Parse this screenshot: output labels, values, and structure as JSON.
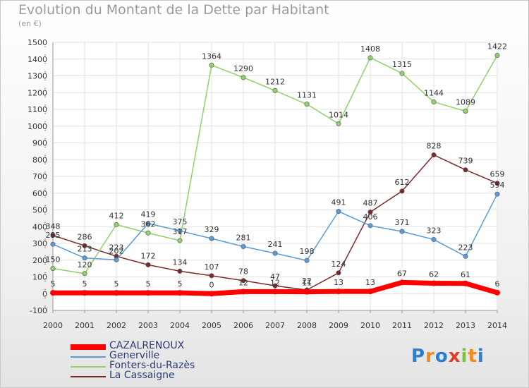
{
  "header": {
    "title": "Evolution du Montant de la Dette par Habitant",
    "unit": "(en €)"
  },
  "logo": {
    "text": "Proxiti"
  },
  "chart_data": {
    "type": "line",
    "title": "Evolution du Montant de la Dette par Habitant",
    "subtitle": "(en €)",
    "x": [
      2000,
      2001,
      2002,
      2003,
      2004,
      2005,
      2006,
      2007,
      2008,
      2009,
      2010,
      2011,
      2012,
      2013,
      2014
    ],
    "ylim": [
      -100,
      1500
    ],
    "yticks": [
      -100,
      0,
      100,
      200,
      300,
      400,
      500,
      600,
      700,
      800,
      900,
      1000,
      1100,
      1200,
      1300,
      1400,
      1500
    ],
    "grid": true,
    "legend_position": "bottom-left",
    "series": [
      {
        "name": "CAZALRENOUX",
        "color": "#ff0000",
        "points": [
          [
            2000,
            5
          ],
          [
            2001,
            5
          ],
          [
            2002,
            5
          ],
          [
            2003,
            5
          ],
          [
            2004,
            5
          ],
          [
            2005,
            0
          ],
          [
            2006,
            12
          ],
          [
            2007,
            12
          ],
          [
            2008,
            11
          ],
          [
            2009,
            13
          ],
          [
            2010,
            13
          ],
          [
            2011,
            67
          ],
          [
            2012,
            62
          ],
          [
            2013,
            61
          ],
          [
            2014,
            6
          ]
        ],
        "labels": [
          "5",
          "5",
          "5",
          "5",
          "5",
          "0",
          "12",
          "12",
          "11",
          "13",
          "13",
          "67",
          "62",
          "61",
          "6"
        ]
      },
      {
        "name": "Generville",
        "color": "#5b9bd5",
        "points": [
          [
            2000,
            295
          ],
          [
            2001,
            213
          ],
          [
            2002,
            202
          ],
          [
            2003,
            419
          ],
          [
            2004,
            375
          ],
          [
            2005,
            329
          ],
          [
            2006,
            281
          ],
          [
            2007,
            241
          ],
          [
            2008,
            198
          ],
          [
            2009,
            491
          ],
          [
            2010,
            406
          ],
          [
            2011,
            371
          ],
          [
            2012,
            323
          ],
          [
            2013,
            223
          ],
          [
            2014,
            594
          ]
        ],
        "labels": [
          "295",
          "213",
          "202",
          "419",
          "375",
          "329",
          "281",
          "241",
          "198",
          "491",
          "406",
          "371",
          "323",
          "223",
          "594"
        ]
      },
      {
        "name": "Fonters-du-Razès",
        "color": "#8fd16a",
        "points": [
          [
            2000,
            150
          ],
          [
            2001,
            120
          ],
          [
            2002,
            412
          ],
          [
            2003,
            362
          ],
          [
            2004,
            317
          ],
          [
            2005,
            1364
          ],
          [
            2006,
            1290
          ],
          [
            2007,
            1212
          ],
          [
            2008,
            1131
          ],
          [
            2009,
            1014
          ],
          [
            2010,
            1408
          ],
          [
            2011,
            1315
          ],
          [
            2012,
            1144
          ],
          [
            2013,
            1089
          ],
          [
            2014,
            1422
          ]
        ],
        "labels": [
          "150",
          "120",
          "412",
          "362",
          "317",
          "1364",
          "1290",
          "1212",
          "1131",
          "1014",
          "1408",
          "1315",
          "1144",
          "1089",
          "1422"
        ]
      },
      {
        "name": "La Cassaigne",
        "color": "#7a2a2a",
        "points": [
          [
            2000,
            348
          ],
          [
            2001,
            286
          ],
          [
            2002,
            223
          ],
          [
            2003,
            172
          ],
          [
            2004,
            134
          ],
          [
            2005,
            107
          ],
          [
            2006,
            78
          ],
          [
            2007,
            47
          ],
          [
            2008,
            22
          ],
          [
            2009,
            124
          ],
          [
            2010,
            487
          ],
          [
            2011,
            612
          ],
          [
            2012,
            828
          ],
          [
            2013,
            739
          ],
          [
            2014,
            659
          ]
        ],
        "labels": [
          "348",
          "286",
          "223",
          "172",
          "134",
          "107",
          "78",
          "47",
          "22",
          "124",
          "487",
          "612",
          "828",
          "739",
          "659"
        ]
      }
    ]
  }
}
